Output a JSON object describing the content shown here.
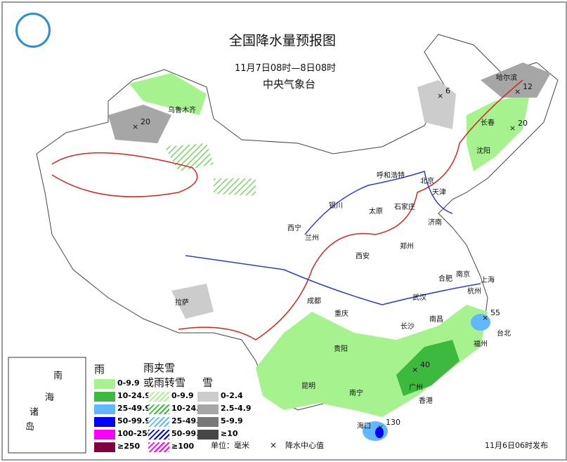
{
  "header": {
    "title": "全国降水量预报图",
    "period": "11月7日08时—8日08时",
    "issuer": "中央气象台",
    "logo": "CMA logo"
  },
  "cities": [
    "乌鲁木齐",
    "哈尔滨",
    "长春",
    "沈阳",
    "呼和浩特",
    "北京",
    "天津",
    "银川",
    "石家庄",
    "太原",
    "济南",
    "西宁",
    "兰州",
    "郑州",
    "西安",
    "南京",
    "合肥",
    "上海",
    "杭州",
    "拉萨",
    "成都",
    "武汉",
    "重庆",
    "长沙",
    "南昌",
    "福州",
    "台北",
    "贵阳",
    "昆明",
    "南宁",
    "广州",
    "香港",
    "海口"
  ],
  "centers": [
    "20",
    "6",
    "12",
    "20",
    "55",
    "40",
    "130"
  ],
  "inset": {
    "labels": [
      "南",
      "海",
      "诸",
      "岛"
    ]
  },
  "legend": {
    "rain_title": "雨",
    "mixed_title_1": "雨夹雪",
    "mixed_title_2": "或雨转雪",
    "snow_title": "雪",
    "rain": [
      {
        "label": "0-9.9",
        "color": "#a6f28f"
      },
      {
        "label": "10-24.9",
        "color": "#3db93d"
      },
      {
        "label": "25-49.9",
        "color": "#61b8ff"
      },
      {
        "label": "50-99.9",
        "color": "#0000fe"
      },
      {
        "label": "100-250",
        "color": "#fa00fa"
      },
      {
        "label": "≥250",
        "color": "#800040"
      }
    ],
    "mixed": [
      {
        "label": "0-9.9",
        "color": "#a6f28f"
      },
      {
        "label": "10-24.9",
        "color": "#3db93d"
      },
      {
        "label": "25-49.9",
        "color": "#61b8ff"
      },
      {
        "label": "50-99.9",
        "color": "#0000fe"
      },
      {
        "label": "≥100",
        "color": "#fa00fa"
      }
    ],
    "snow": [
      {
        "label": "0-2.4",
        "color": "#cccccc"
      },
      {
        "label": "2.5-4.9",
        "color": "#a6a6a6"
      },
      {
        "label": "5-9.9",
        "color": "#787878"
      },
      {
        "label": "≥10",
        "color": "#464646"
      }
    ],
    "unit": "单位：毫米",
    "center_symbol": "×",
    "center_label": "降水中心值"
  },
  "footer": {
    "issued": "11月6日06时发布"
  }
}
